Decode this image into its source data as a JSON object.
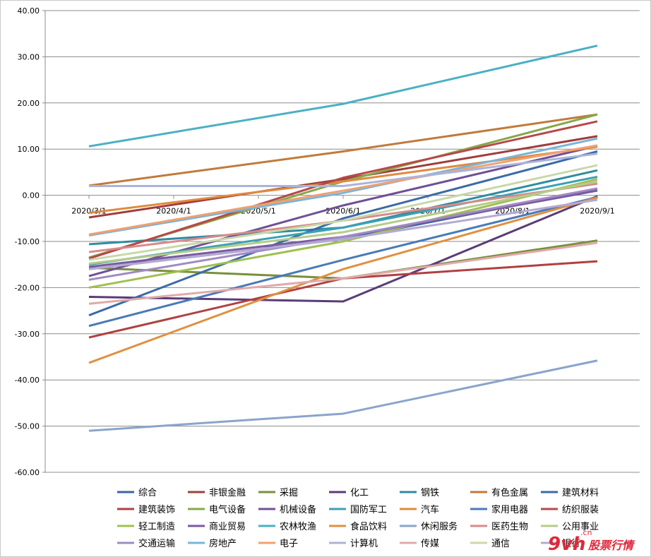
{
  "chart_data": {
    "type": "line",
    "title": "",
    "xlabel": "",
    "ylabel": "",
    "ylim": [
      -60,
      40
    ],
    "yticks": [
      "40.00",
      "30.00",
      "20.00",
      "10.00",
      "0.00",
      "-10.00",
      "-20.00",
      "-30.00",
      "-40.00",
      "-50.00",
      "-60.00"
    ],
    "categories": [
      "2020/3/1",
      "2020/4/1",
      "2020/5/1",
      "2020/6/1",
      "2020/7/1",
      "2020/8/1",
      "2020/9/1"
    ],
    "grid": "horizontal",
    "legend_position": "bottom",
    "series": [
      {
        "name": "综合",
        "color": "#3c64a0",
        "values": [
          -16.0,
          null,
          null,
          -9.5,
          null,
          null,
          1.3
        ]
      },
      {
        "name": "非银金融",
        "color": "#a03c3c",
        "values": [
          -4.8,
          null,
          null,
          3.5,
          null,
          null,
          12.8
        ]
      },
      {
        "name": "采掘",
        "color": "#7a8f3c",
        "values": [
          -15.7,
          null,
          null,
          -18.0,
          null,
          null,
          -9.8
        ]
      },
      {
        "name": "化工",
        "color": "#5a3c78",
        "values": [
          -22.0,
          null,
          null,
          -23.0,
          null,
          null,
          -0.2
        ]
      },
      {
        "name": "钢铁",
        "color": "#2f8ca0",
        "values": [
          -10.6,
          null,
          null,
          -7.0,
          null,
          null,
          5.4
        ]
      },
      {
        "name": "有色金属",
        "color": "#c07a3c",
        "values": [
          2.1,
          null,
          null,
          9.5,
          null,
          null,
          17.5
        ]
      },
      {
        "name": "建筑材料",
        "color": "#3a6aa8",
        "values": [
          -26.0,
          null,
          null,
          -5.0,
          null,
          null,
          9.5
        ]
      },
      {
        "name": "建筑装饰",
        "color": "#b04040",
        "values": [
          -30.8,
          null,
          null,
          -18.0,
          null,
          null,
          -14.3
        ]
      },
      {
        "name": "电气设备",
        "color": "#86a84a",
        "values": [
          -13.5,
          null,
          null,
          3.0,
          null,
          null,
          17.5
        ]
      },
      {
        "name": "机械设备",
        "color": "#6f5096",
        "values": [
          -17.5,
          null,
          null,
          -2.2,
          null,
          null,
          10.7
        ]
      },
      {
        "name": "国防军工",
        "color": "#3ca0b4",
        "values": [
          -15.0,
          null,
          null,
          -7.0,
          null,
          null,
          4.0
        ]
      },
      {
        "name": "汽车",
        "color": "#e08a3c",
        "values": [
          -3.8,
          null,
          null,
          3.0,
          null,
          null,
          10.5
        ]
      },
      {
        "name": "家用电器",
        "color": "#4a7ab8",
        "values": [
          -28.3,
          null,
          null,
          -14.0,
          null,
          null,
          -0.4
        ]
      },
      {
        "name": "纺织服装",
        "color": "#b84848",
        "values": [
          -13.7,
          null,
          null,
          3.8,
          null,
          null,
          16.0
        ]
      },
      {
        "name": "轻工制造",
        "color": "#a0c050",
        "values": [
          -20.0,
          null,
          null,
          -10.0,
          null,
          null,
          3.5
        ]
      },
      {
        "name": "商业贸易",
        "color": "#7a5aa0",
        "values": [
          -15.5,
          null,
          null,
          -9.0,
          null,
          null,
          1.0
        ]
      },
      {
        "name": "农林牧渔",
        "color": "#4ab0c4",
        "values": [
          10.6,
          null,
          null,
          19.8,
          null,
          null,
          32.4
        ]
      },
      {
        "name": "食品饮料",
        "color": "#e09040",
        "values": [
          -36.3,
          null,
          null,
          -16.0,
          null,
          null,
          -0.5
        ]
      },
      {
        "name": "休闲服务",
        "color": "#8aa4cc",
        "values": [
          -51.0,
          null,
          null,
          -47.3,
          null,
          null,
          -35.8
        ]
      },
      {
        "name": "医药生物",
        "color": "#d88a8a",
        "values": [
          -12.3,
          null,
          null,
          -5.5,
          null,
          null,
          2.5
        ]
      },
      {
        "name": "公用事业",
        "color": "#b4cc8a",
        "values": [
          -14.8,
          null,
          null,
          -8.0,
          null,
          null,
          3.0
        ]
      },
      {
        "name": "交通运输",
        "color": "#a08ac4",
        "values": [
          -18.3,
          null,
          null,
          -9.0,
          null,
          null,
          1.5
        ]
      },
      {
        "name": "房地产",
        "color": "#7ab4d8",
        "values": [
          -8.7,
          null,
          null,
          0.5,
          null,
          null,
          12.3
        ]
      },
      {
        "name": "电子",
        "color": "#f0a070",
        "values": [
          -8.5,
          null,
          null,
          1.0,
          null,
          null,
          10.8
        ]
      },
      {
        "name": "计算机",
        "color": "#aab4d8",
        "values": [
          2.0,
          null,
          null,
          2.0,
          null,
          null,
          9.0
        ]
      },
      {
        "name": "传媒",
        "color": "#e0aaaa",
        "values": [
          -23.5,
          null,
          null,
          -18.0,
          null,
          null,
          -10.3
        ]
      },
      {
        "name": "通信",
        "color": "#c8d8a8",
        "values": [
          -14.0,
          null,
          null,
          -5.5,
          null,
          null,
          6.5
        ]
      },
      {
        "name": "银行",
        "color": "#b4aad4",
        "values": [
          -16.0,
          null,
          null,
          -9.5,
          null,
          null,
          -1.0
        ]
      }
    ]
  },
  "watermark": {
    "brand": "9vh",
    "sub": ".cn",
    "text": "股票行情"
  }
}
